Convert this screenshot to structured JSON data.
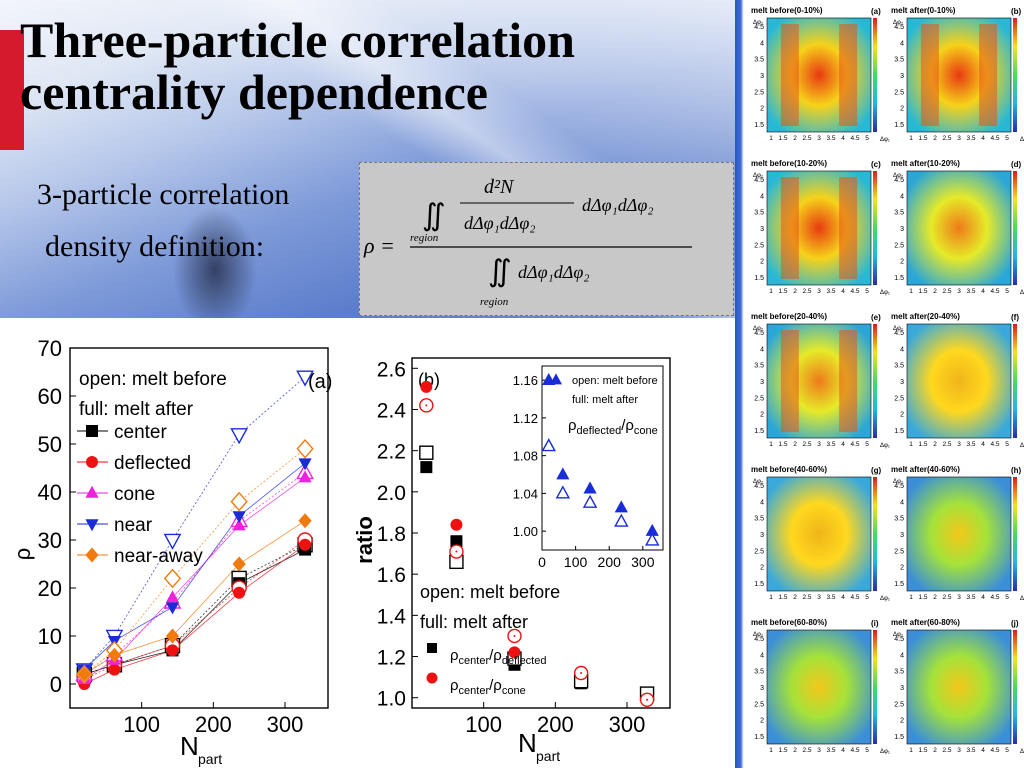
{
  "slide": {
    "title_line1": "Three-particle correlation",
    "title_line2": "centrality dependence",
    "definition_line1": "3-particle correlation",
    "definition_line2": "density definition:"
  },
  "formula": {
    "rho": "ρ =",
    "numerator": "d²N",
    "denominator": "dΔφ₁dΔφ₂",
    "factor": "dΔφ₁dΔφ₂",
    "integral": "∬",
    "region": "region",
    "lower": "dΔφ₁dΔφ₂"
  },
  "heatmaps": {
    "rows": [
      {
        "left": "melt before(0-10%)",
        "left_tag": "(a)",
        "right": "melt after(0-10%)",
        "right_tag": "(b)"
      },
      {
        "left": "melt before(10-20%)",
        "left_tag": "(c)",
        "right": "melt after(10-20%)",
        "right_tag": "(d)"
      },
      {
        "left": "melt before(20-40%)",
        "left_tag": "(e)",
        "right": "melt after(20-40%)",
        "right_tag": "(f)"
      },
      {
        "left": "melt before(40-60%)",
        "left_tag": "(g)",
        "right": "melt after(40-60%)",
        "right_tag": "(h)"
      },
      {
        "left": "melt before(60-80%)",
        "left_tag": "(i)",
        "right": "melt after(60-80%)",
        "right_tag": "(j)"
      }
    ],
    "y_ticks": [
      "1.5",
      "2",
      "2.5",
      "3",
      "3.5",
      "4",
      "4.5"
    ],
    "x_ticks": [
      "1",
      "1.5",
      "2",
      "2.5",
      "3",
      "3.5",
      "4",
      "4.5",
      "5"
    ],
    "x_label": "Δφ₁",
    "y_label": "Δφ₂"
  },
  "chart_data": [
    {
      "type": "scatter",
      "panel_tag": "(a)",
      "xlabel_main": "N",
      "xlabel_sub": "part",
      "ylabel": "ρ",
      "xlim": [
        0,
        360
      ],
      "ylim": [
        -5,
        70
      ],
      "x_ticks": [
        100,
        200,
        300
      ],
      "y_ticks": [
        0,
        10,
        20,
        30,
        40,
        50,
        60,
        70
      ],
      "legend_header1": "open: melt before",
      "legend_header2": "full: melt after",
      "x": [
        20,
        62,
        143,
        236,
        328
      ],
      "series": [
        {
          "name": "center",
          "marker": "square",
          "color": "#000000",
          "open": [
            2,
            4,
            8,
            22,
            29
          ],
          "full": [
            2,
            4,
            7,
            21,
            28
          ]
        },
        {
          "name": "deflected",
          "marker": "circle",
          "color": "#ee1111",
          "open": [
            1,
            4,
            8,
            20,
            30
          ],
          "full": [
            0,
            3,
            7,
            19,
            29
          ]
        },
        {
          "name": "cone",
          "marker": "triangle-up",
          "color": "#ee22dd",
          "open": [
            2,
            6,
            17,
            34,
            44
          ],
          "full": [
            1,
            5,
            18,
            33,
            43
          ]
        },
        {
          "name": "near",
          "marker": "triangle-down",
          "color": "#1a2bd8",
          "open": [
            3,
            10,
            30,
            52,
            64
          ],
          "full": [
            3,
            9,
            16,
            35,
            46
          ]
        },
        {
          "name": "near-away",
          "marker": "diamond",
          "color": "#f07a0c",
          "open": [
            2,
            7,
            22,
            38,
            49
          ],
          "full": [
            2,
            6,
            10,
            25,
            34
          ]
        }
      ]
    },
    {
      "type": "scatter",
      "panel_tag": "(b)",
      "xlabel_main": "N",
      "xlabel_sub": "part",
      "ylabel": "ratio",
      "xlim": [
        0,
        360
      ],
      "ylim": [
        0.95,
        2.65
      ],
      "x_ticks": [
        100,
        200,
        300
      ],
      "y_ticks": [
        1.0,
        1.2,
        1.4,
        1.6,
        1.8,
        2.0,
        2.2,
        2.4,
        2.6
      ],
      "legend_header1": "open: melt before",
      "legend_header2": "full: melt after",
      "x": [
        20,
        62,
        143,
        236,
        328
      ],
      "series": [
        {
          "name": "ρcenter/ρdeflected",
          "marker": "square",
          "color": "#000000",
          "open": [
            2.19,
            1.66,
            1.19,
            1.08,
            1.02
          ],
          "full": [
            2.12,
            1.76,
            1.16,
            1.07,
            1.01
          ]
        },
        {
          "name": "ρcenter/ρcone",
          "marker": "circle",
          "color": "#ee1111",
          "open": [
            2.42,
            1.71,
            1.3,
            1.12,
            0.99
          ],
          "full": [
            2.51,
            1.84,
            1.22,
            1.12,
            0.99
          ]
        }
      ],
      "legend_label1_main": "ρ",
      "legend_label1_sub1": "center",
      "legend_label1_sep": "/ρ",
      "legend_label1_sub2": "deflected",
      "legend_label2_main": "ρ",
      "legend_label2_sub1": "center",
      "legend_label2_sep": "/ρ",
      "legend_label2_sub2": "cone",
      "inset": {
        "header1": "open: melt before",
        "header2": "full:   melt after",
        "label_main": "ρ",
        "label_sub1": "deflected",
        "label_sep": "/ρ",
        "label_sub2": "cone",
        "xlim": [
          0,
          360
        ],
        "ylim": [
          0.98,
          1.175
        ],
        "x_ticks": [
          0,
          100,
          200,
          300
        ],
        "y_ticks": [
          1.0,
          1.04,
          1.08,
          1.12,
          1.16
        ],
        "x": [
          20,
          62,
          143,
          236,
          328
        ],
        "open": [
          1.09,
          1.04,
          1.03,
          1.01,
          0.99
        ],
        "full": [
          1.16,
          1.06,
          1.045,
          1.025,
          1.0
        ],
        "color": "#1a2bd8"
      }
    }
  ]
}
